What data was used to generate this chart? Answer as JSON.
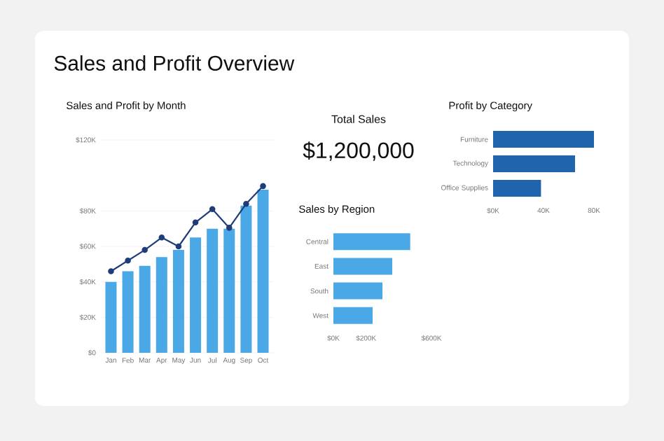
{
  "chart_data": [
    {
      "type": "other",
      "title": "Sales and Profit Overview"
    },
    {
      "type": "bar",
      "title": "Sales and Profit by Month",
      "categories": [
        "Jan",
        "Feb",
        "Mar",
        "Apr",
        "May",
        "Jun",
        "Jul",
        "Aug",
        "Sep",
        "Oct"
      ],
      "series": [
        {
          "type": "bar",
          "color": "#4aa8e6",
          "values": [
            40,
            46,
            49,
            54,
            58,
            65,
            70,
            70,
            83,
            92
          ]
        },
        {
          "type": "line",
          "color": "#1f3d7a",
          "values": [
            46,
            52,
            58,
            65,
            60,
            73.5,
            81,
            70.5,
            84,
            94
          ]
        }
      ],
      "ylim": [
        0,
        120
      ],
      "yticks": [
        {
          "value": 0,
          "label": "$0"
        },
        {
          "value": 20,
          "label": "$20K"
        },
        {
          "value": 40,
          "label": "$40K"
        },
        {
          "value": 60,
          "label": "$60K"
        },
        {
          "value": 80,
          "label": "$80K"
        },
        {
          "value": 120,
          "label": "$120K"
        }
      ],
      "grid": "y",
      "marker": "circle"
    },
    {
      "type": "other",
      "title": "Total Sales",
      "annotations": [
        "$1,200,000"
      ]
    },
    {
      "type": "bar",
      "title": "Sales by Region",
      "orientation": "horizontal",
      "categories": [
        "Central",
        "East",
        "South",
        "West"
      ],
      "values": [
        470,
        360,
        300,
        240
      ],
      "color": "#4aa8e6",
      "xlim": [
        0,
        600
      ],
      "xticks": [
        {
          "value": 0,
          "label": "$0K"
        },
        {
          "value": 200,
          "label": "$200K"
        },
        {
          "value": 600,
          "label": "$600K"
        }
      ]
    },
    {
      "type": "bar",
      "title": "Profit by Category",
      "orientation": "horizontal",
      "categories": [
        "Furniture",
        "Technology",
        "Office Supplies"
      ],
      "values": [
        80,
        65,
        38
      ],
      "color": "#1f64ad",
      "xlim": [
        0,
        80
      ],
      "xticks": [
        {
          "value": 0,
          "label": "$0K"
        },
        {
          "value": 40,
          "label": "40K"
        },
        {
          "value": 80,
          "label": "80K"
        }
      ]
    }
  ]
}
